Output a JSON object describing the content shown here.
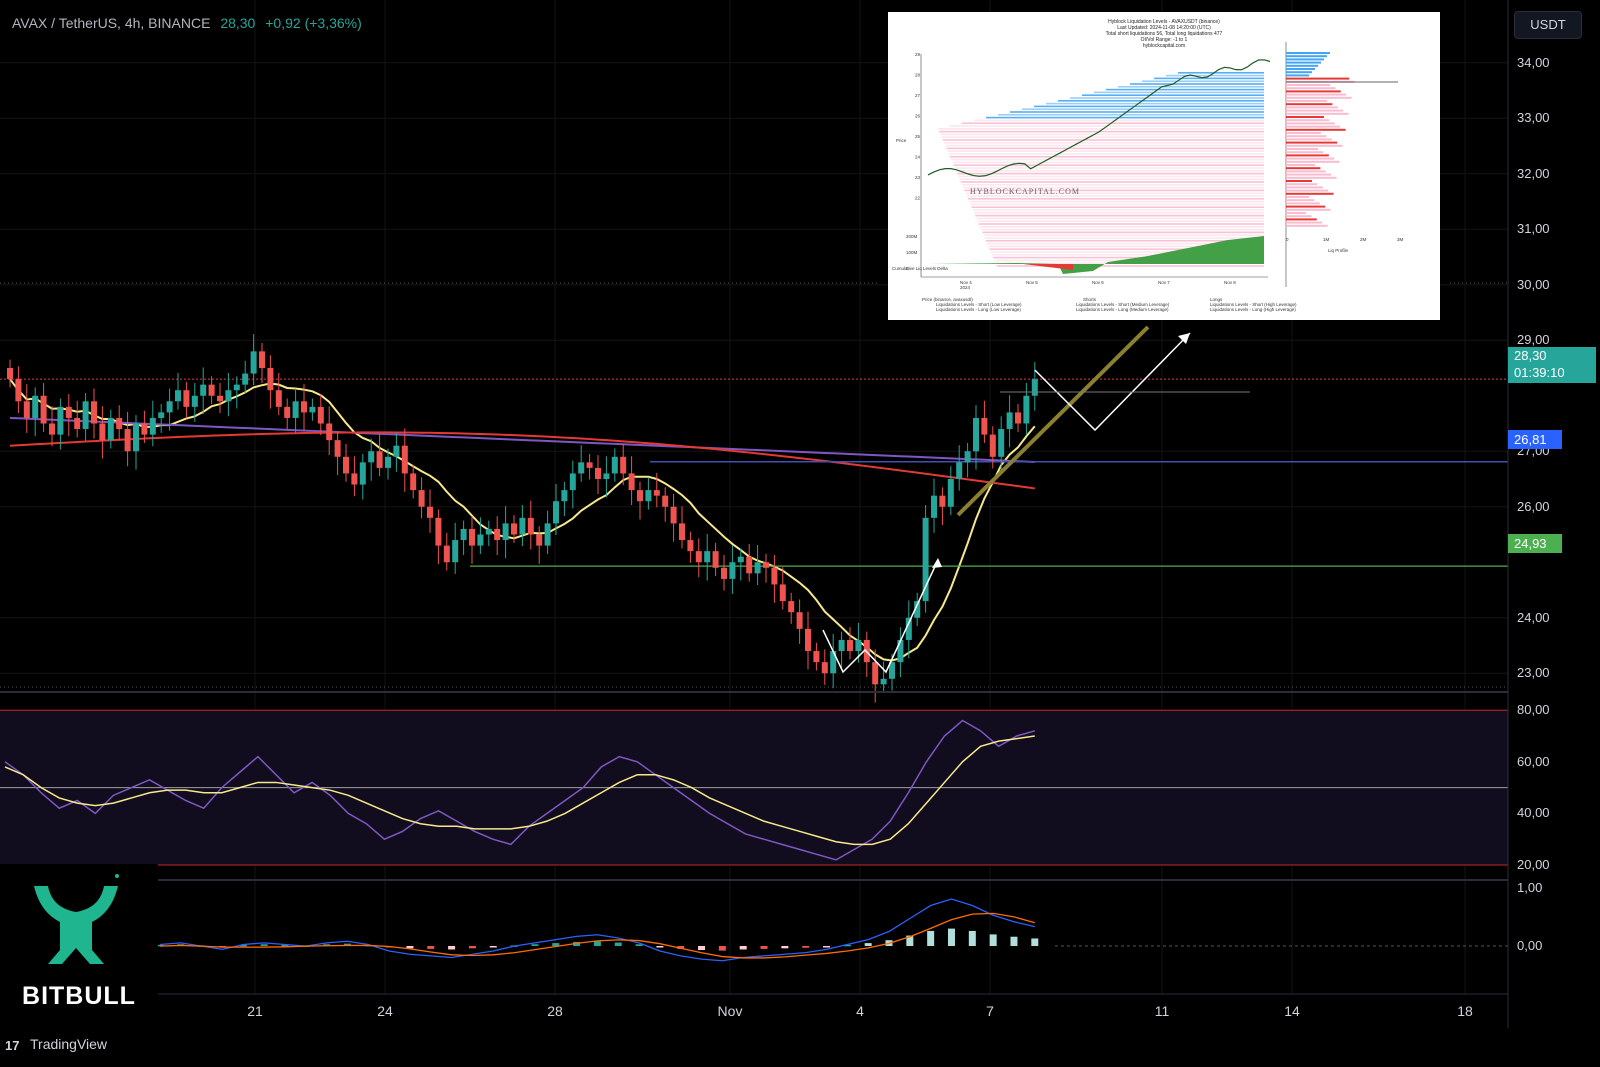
{
  "header": {
    "symbol": "AVAX / TetherUS, 4h, BINANCE",
    "price": "28,30",
    "change": "+0,92 (+3,36%)"
  },
  "currency_button": "USDT",
  "price_tags": {
    "current_price": "28,30",
    "countdown": "01:39:10",
    "blue_level": "26,81",
    "green_level": "24,93"
  },
  "y_axis_labels": [
    "34,00",
    "33,00",
    "32,00",
    "31,00",
    "30,00",
    "29,00",
    "27,00",
    "26,00",
    "24,00",
    "23,00"
  ],
  "rsi_axis_labels": [
    "80,00",
    "60,00",
    "40,00",
    "20,00"
  ],
  "macd_axis_labels": [
    "1,00",
    "0,00"
  ],
  "x_axis_labels": [
    "21",
    "24",
    "28",
    "Nov",
    "4",
    "7",
    "11",
    "14",
    "18"
  ],
  "inset": {
    "title_lines": [
      "Hyblock Liquidation Levels - AVAXUSDT (binance)",
      "Last Updated: 2024-11-08 14:20:00 (UTC)",
      "Total short liquidations 56, Total long liquidations 477",
      "OI/Vol Range: -1 to 1",
      "hyblockcapital.com"
    ],
    "watermark": "HYBLOCKCAPITAL.COM",
    "y_ticks": [
      "29",
      "28",
      "27",
      "26",
      "25",
      "24",
      "23",
      "22"
    ],
    "x_ticks": [
      "Nov 4\n2024",
      "Nov 5",
      "Nov 6",
      "Nov 7",
      "Nov 8"
    ],
    "profile_ticks": [
      "0",
      "1M",
      "2M",
      "3M"
    ],
    "profile_label": "Liq Profile",
    "price_axis_label": "Price",
    "cum_axis_label": "Cumulative Liq Levels Delta",
    "legend": [
      "Price (binance, avaxusdt)",
      "Shorts",
      "Longs",
      "Liquidations Levels - Short (Low Leverage)",
      "Liquidations Levels - Short (Medium Leverage)",
      "Liquidations Levels - Short (High Leverage)",
      "Liquidations Levels - Long (Low Leverage)",
      "Liquidations Levels - Long (Medium Leverage)",
      "Liquidations Levels - Long (High Leverage)"
    ],
    "cum_ticks": [
      "200M",
      "100M",
      "0"
    ]
  },
  "branding": {
    "logo_text": "BITBULL",
    "platform": "TradingView"
  },
  "colors": {
    "up": "#26a69a",
    "down": "#ef5350",
    "ema_short": "#f7e98a",
    "ema_mid": "#7e57c2",
    "ema_long": "#e53935",
    "resistance": "#f23645",
    "support_blue": "#3f51b5",
    "support_green": "#4caf50",
    "trendline": "#8a8030"
  },
  "chart_data": [
    {
      "type": "candlestick",
      "title": "AVAX / TetherUS, 4h, BINANCE",
      "y_range": [
        22.2,
        34.3
      ],
      "x_range_days": [
        "Oct 18",
        "Nov 19"
      ],
      "closes": [
        28.3,
        27.9,
        27.6,
        28.0,
        27.5,
        27.3,
        27.8,
        27.6,
        27.4,
        27.9,
        27.5,
        27.2,
        27.6,
        27.4,
        27.0,
        27.5,
        27.3,
        27.6,
        27.7,
        27.9,
        28.1,
        27.8,
        28.0,
        28.2,
        28.0,
        27.9,
        28.1,
        28.2,
        28.4,
        28.8,
        28.5,
        28.1,
        27.8,
        27.6,
        27.9,
        27.7,
        27.8,
        27.5,
        27.2,
        26.9,
        26.6,
        26.4,
        26.8,
        27.0,
        26.7,
        26.9,
        27.1,
        26.6,
        26.3,
        26.0,
        25.8,
        25.3,
        25.0,
        25.4,
        25.6,
        25.3,
        25.5,
        25.6,
        25.4,
        25.7,
        25.5,
        25.8,
        25.5,
        25.3,
        25.7,
        26.1,
        26.3,
        26.6,
        26.8,
        26.7,
        26.5,
        26.6,
        26.9,
        26.6,
        26.3,
        26.1,
        26.3,
        26.2,
        26.0,
        25.7,
        25.4,
        25.2,
        25.0,
        25.2,
        24.9,
        24.7,
        25.0,
        25.1,
        24.8,
        25.0,
        24.9,
        24.6,
        24.3,
        24.1,
        23.8,
        23.4,
        23.2,
        23.0,
        23.4,
        23.6,
        23.4,
        23.6,
        23.2,
        22.8,
        22.9,
        23.2,
        23.6,
        24.0,
        24.3,
        25.8,
        26.2,
        26.0,
        26.5,
        26.8,
        27.0,
        27.6,
        27.3,
        26.9,
        27.4,
        27.7,
        27.5,
        28.0,
        28.3
      ],
      "levels": {
        "resistance": 28.3,
        "blue_support": 26.81,
        "green_support": 24.93
      },
      "projection": "pullback toward 27.0 then rise above 29"
    },
    {
      "type": "line",
      "title": "RSI",
      "y_range": [
        20,
        80
      ],
      "bands": [
        20,
        50,
        80
      ],
      "series": [
        {
          "values": [
            60,
            55,
            48,
            42,
            45,
            40,
            47,
            50,
            53,
            49,
            45,
            42,
            50,
            56,
            62,
            55,
            48,
            52,
            47,
            40,
            36,
            30,
            33,
            38,
            41,
            37,
            33,
            30,
            28,
            35,
            40,
            45,
            50,
            58,
            62,
            60,
            55,
            50,
            45,
            40,
            36,
            32,
            30,
            28,
            26,
            24,
            22,
            26,
            30,
            37,
            48,
            60,
            70,
            76,
            72,
            66,
            70,
            72
          ]
        },
        {
          "values": [
            58,
            55,
            50,
            46,
            44,
            43,
            44,
            46,
            48,
            49,
            49,
            48,
            48,
            50,
            52,
            52,
            51,
            50,
            49,
            47,
            44,
            41,
            38,
            36,
            35,
            35,
            34,
            34,
            34,
            35,
            37,
            40,
            44,
            48,
            52,
            55,
            55,
            53,
            50,
            46,
            43,
            40,
            37,
            35,
            33,
            31,
            29,
            28,
            28,
            30,
            36,
            44,
            52,
            60,
            66,
            68,
            69,
            70
          ]
        }
      ]
    },
    {
      "type": "histogram",
      "title": "MACD",
      "y_range": [
        -0.5,
        1.2
      ],
      "series": [
        {
          "name": "histogram",
          "values": [
            0.02,
            0.03,
            0.01,
            -0.01,
            0.02,
            0.03,
            0.02,
            0.01,
            0.03,
            0.04,
            0.02,
            -0.02,
            -0.04,
            -0.05,
            -0.06,
            -0.04,
            -0.02,
            0.01,
            0.03,
            0.05,
            0.07,
            0.08,
            0.06,
            0.03,
            -0.02,
            -0.05,
            -0.07,
            -0.08,
            -0.06,
            -0.05,
            -0.04,
            -0.03,
            -0.01,
            0.02,
            0.05,
            0.1,
            0.18,
            0.26,
            0.3,
            0.26,
            0.2,
            0.16,
            0.13
          ]
        }
      ]
    }
  ]
}
